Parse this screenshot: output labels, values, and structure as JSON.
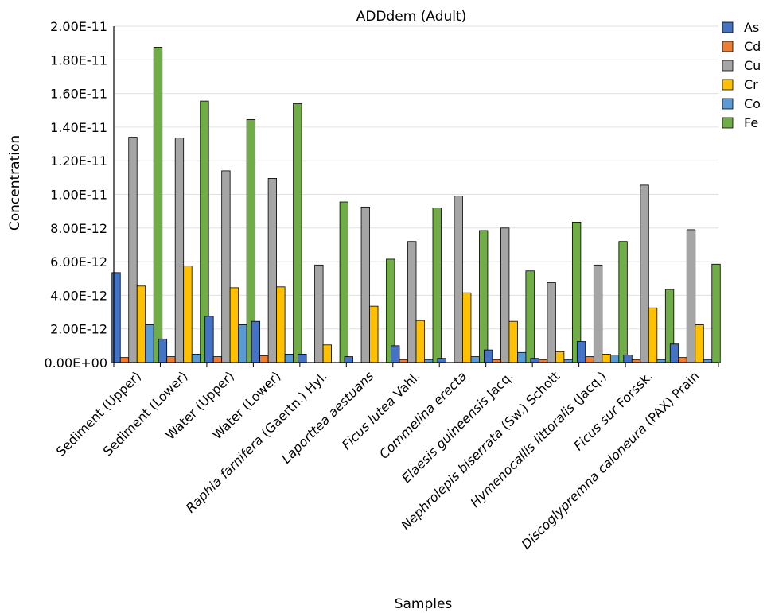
{
  "chart_data": {
    "type": "bar",
    "title": "ADDdem (Adult)",
    "xlabel": "Samples",
    "ylabel": "Concentration",
    "ylim": [
      0,
      2e-11
    ],
    "yticks": [
      {
        "value": 0,
        "label": "0.00E+00"
      },
      {
        "value": 2e-12,
        "label": "2.00E-12"
      },
      {
        "value": 4e-12,
        "label": "4.00E-12"
      },
      {
        "value": 6e-12,
        "label": "6.00E-12"
      },
      {
        "value": 8e-12,
        "label": "8.00E-12"
      },
      {
        "value": 1e-11,
        "label": "1.00E-11"
      },
      {
        "value": 1.2e-11,
        "label": "1.20E-11"
      },
      {
        "value": 1.4e-11,
        "label": "1.40E-11"
      },
      {
        "value": 1.6e-11,
        "label": "1.60E-11"
      },
      {
        "value": 1.8e-11,
        "label": "1.80E-11"
      },
      {
        "value": 2e-11,
        "label": "2.00E-11"
      }
    ],
    "categories": [
      [
        {
          "t": "Sediment (Upper)",
          "i": false
        }
      ],
      [
        {
          "t": "Sediment (Lower)",
          "i": false
        }
      ],
      [
        {
          "t": "Water (Upper)",
          "i": false
        }
      ],
      [
        {
          "t": "Water (Lower)",
          "i": false
        }
      ],
      [
        {
          "t": "Raphia farnifera",
          "i": true
        },
        {
          "t": " (Gaertn.) Hyl.",
          "i": false
        }
      ],
      [
        {
          "t": "Laporttea aestuans",
          "i": true
        }
      ],
      [
        {
          "t": "Ficus lutea",
          "i": true
        },
        {
          "t": " Vahl.",
          "i": false
        }
      ],
      [
        {
          "t": "Commelina erecta",
          "i": true
        }
      ],
      [
        {
          "t": "Elaesis guineensis",
          "i": true
        },
        {
          "t": " Jacq.",
          "i": false
        }
      ],
      [
        {
          "t": "Nephrolepis biserrata",
          "i": true
        },
        {
          "t": " (Sw.) Schott",
          "i": false
        }
      ],
      [
        {
          "t": "Hymenocallis littoralis",
          "i": true
        },
        {
          "t": " (Jacq.)",
          "i": false
        }
      ],
      [
        {
          "t": "Ficus sur",
          "i": true
        },
        {
          "t": " Forssk.",
          "i": false
        }
      ],
      [
        {
          "t": "Discoglypremna caloneura",
          "i": true
        },
        {
          "t": " (PAX) Prain",
          "i": false
        }
      ]
    ],
    "series": [
      {
        "name": "As",
        "color": "#4472C4",
        "values": [
          5.35e-12,
          1.4e-12,
          2.75e-12,
          2.45e-12,
          5e-13,
          3.5e-13,
          1e-12,
          2.5e-13,
          7.5e-13,
          2.5e-13,
          1.25e-12,
          4.5e-13,
          1.1e-12
        ]
      },
      {
        "name": "Cd",
        "color": "#ED7D31",
        "values": [
          3e-13,
          3.5e-13,
          3.5e-13,
          4e-13,
          0,
          0,
          1.8e-13,
          0,
          1.8e-13,
          1.8e-13,
          3.5e-13,
          1.8e-13,
          3e-13
        ]
      },
      {
        "name": "Cu",
        "color": "#A5A5A5",
        "values": [
          1.34e-11,
          1.335e-11,
          1.14e-11,
          1.095e-11,
          5.8e-12,
          9.25e-12,
          7.2e-12,
          9.9e-12,
          8e-12,
          4.75e-12,
          5.8e-12,
          1.055e-11,
          7.9e-12
        ]
      },
      {
        "name": "Cr",
        "color": "#FFC000",
        "values": [
          4.55e-12,
          5.75e-12,
          4.45e-12,
          4.5e-12,
          1.05e-12,
          3.35e-12,
          2.5e-12,
          4.15e-12,
          2.45e-12,
          6.5e-13,
          5e-13,
          3.25e-12,
          2.25e-12
        ]
      },
      {
        "name": "Co",
        "color": "#5B9BD5",
        "values": [
          2.25e-12,
          5e-13,
          2.25e-12,
          5e-13,
          0,
          0,
          1.8e-13,
          3.5e-13,
          6e-13,
          1.8e-13,
          4.5e-13,
          1.8e-13,
          1.8e-13
        ]
      },
      {
        "name": "Fe",
        "color": "#70AD47",
        "values": [
          1.875e-11,
          1.555e-11,
          1.445e-11,
          1.54e-11,
          9.55e-12,
          6.15e-12,
          9.2e-12,
          7.85e-12,
          5.45e-12,
          8.35e-12,
          7.2e-12,
          4.35e-12,
          5.85e-12
        ]
      }
    ],
    "grid": true,
    "legend_position": "right"
  }
}
